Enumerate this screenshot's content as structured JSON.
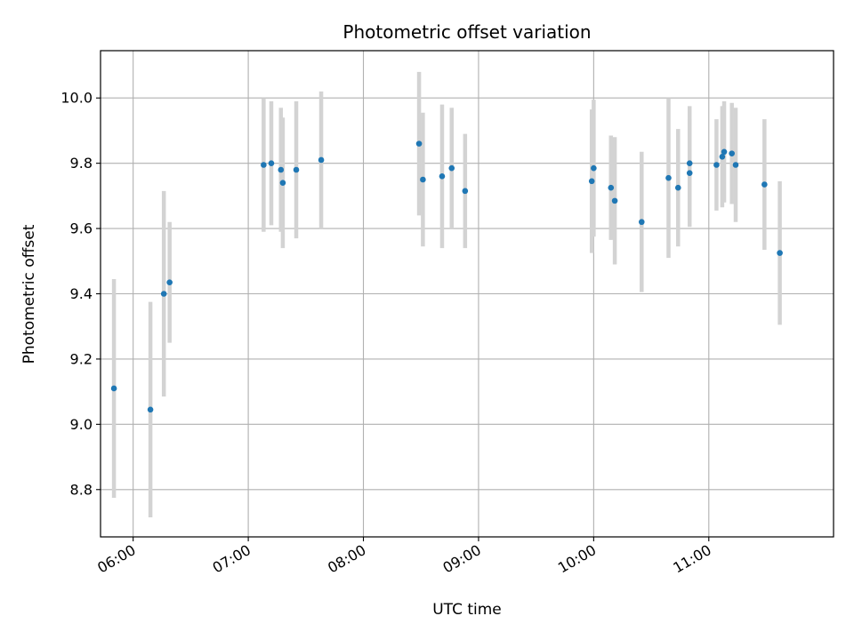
{
  "chart_data": {
    "type": "scatter",
    "title": "Photometric offset variation",
    "xlabel": "UTC time",
    "ylabel": "Photometric offset",
    "x_tick_labels": [
      "06:00",
      "07:00",
      "08:00",
      "09:00",
      "10:00",
      "11:00"
    ],
    "y_tick_labels": [
      "8.8",
      "9.0",
      "9.2",
      "9.4",
      "9.6",
      "9.8",
      "10.0"
    ],
    "y_ticks": [
      8.8,
      9.0,
      9.2,
      9.4,
      9.6,
      9.8,
      10.0
    ],
    "x_ticks": [
      "06:00",
      "07:00",
      "08:00",
      "09:00",
      "10:00",
      "11:00"
    ],
    "xlim": [
      "05:43",
      "12:05"
    ],
    "ylim": [
      8.655,
      10.145
    ],
    "grid": true,
    "colors": {
      "marker": "#1f77b4",
      "errorbar": "#d3d3d3",
      "grid": "#b0b0b0"
    },
    "points": [
      {
        "x": "05:50",
        "y": 9.11,
        "err": 0.335
      },
      {
        "x": "06:09",
        "y": 9.045,
        "err": 0.33
      },
      {
        "x": "06:16",
        "y": 9.4,
        "err": 0.315
      },
      {
        "x": "06:19",
        "y": 9.435,
        "err": 0.185
      },
      {
        "x": "07:08",
        "y": 9.795,
        "err": 0.205
      },
      {
        "x": "07:12",
        "y": 9.8,
        "err": 0.19
      },
      {
        "x": "07:17",
        "y": 9.78,
        "err": 0.19
      },
      {
        "x": "07:18",
        "y": 9.74,
        "err": 0.2
      },
      {
        "x": "07:25",
        "y": 9.78,
        "err": 0.21
      },
      {
        "x": "07:38",
        "y": 9.81,
        "err": 0.21
      },
      {
        "x": "08:29",
        "y": 9.86,
        "err": 0.22
      },
      {
        "x": "08:31",
        "y": 9.75,
        "err": 0.205
      },
      {
        "x": "08:41",
        "y": 9.76,
        "err": 0.22
      },
      {
        "x": "08:46",
        "y": 9.785,
        "err": 0.185
      },
      {
        "x": "08:53",
        "y": 9.715,
        "err": 0.175
      },
      {
        "x": "09:59",
        "y": 9.745,
        "err": 0.22
      },
      {
        "x": "10:00",
        "y": 9.785,
        "err": 0.21
      },
      {
        "x": "10:09",
        "y": 9.725,
        "err": 0.16
      },
      {
        "x": "10:11",
        "y": 9.685,
        "err": 0.195
      },
      {
        "x": "10:25",
        "y": 9.62,
        "err": 0.215
      },
      {
        "x": "10:39",
        "y": 9.755,
        "err": 0.245
      },
      {
        "x": "10:44",
        "y": 9.725,
        "err": 0.18
      },
      {
        "x": "10:50",
        "y": 9.8,
        "err": 0.175
      },
      {
        "x": "10:50",
        "y": 9.77,
        "err": 0.165
      },
      {
        "x": "11:04",
        "y": 9.795,
        "err": 0.14
      },
      {
        "x": "11:07",
        "y": 9.82,
        "err": 0.155
      },
      {
        "x": "11:08",
        "y": 9.835,
        "err": 0.155
      },
      {
        "x": "11:12",
        "y": 9.83,
        "err": 0.155
      },
      {
        "x": "11:14",
        "y": 9.795,
        "err": 0.175
      },
      {
        "x": "11:29",
        "y": 9.735,
        "err": 0.2
      },
      {
        "x": "11:37",
        "y": 9.525,
        "err": 0.22
      }
    ]
  }
}
